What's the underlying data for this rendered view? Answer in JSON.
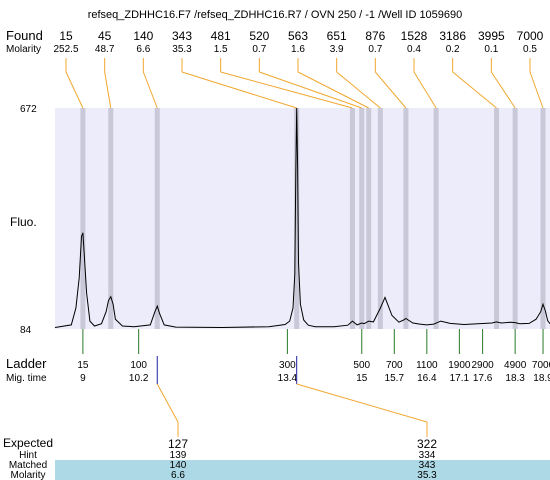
{
  "title": "refseq_ZDHHC16.F7 /refseq_ZDHHC16.R7 / OVN 250 / -1 /Well ID 1059690",
  "colors": {
    "plot_bg": "#ececfa",
    "band": "#c8c8d8",
    "trace": "#000000",
    "found_leader": "#f0a830",
    "ladder_tick": "#2a7a2a",
    "expected_tick": "#2020a0",
    "matched_bg": "#add8e6"
  },
  "labels": {
    "found": "Found",
    "molarity": "Molarity",
    "fluo": "Fluo.",
    "ladder": "Ladder",
    "mig_time": "Mig. time",
    "expected": "Expected",
    "hint": "Hint",
    "matched": "Matched",
    "molarity_bottom": "Molarity"
  },
  "chart_data": {
    "type": "line",
    "title": "refseq_ZDHHC16.F7 /refseq_ZDHHC16.R7 / OVN 250 / -1 /Well ID 1059690",
    "xlabel": "Mig. time",
    "ylabel": "Fluo.",
    "ylim": [
      84,
      672
    ],
    "xlim": [
      8.4,
      19.05
    ],
    "y_ticks": [
      84,
      672
    ],
    "found_peaks": [
      {
        "size": "15",
        "molarity": "252.5",
        "x": 9.0
      },
      {
        "size": "45",
        "molarity": "48.7",
        "x": 9.6
      },
      {
        "size": "140",
        "molarity": "6.6",
        "x": 10.6
      },
      {
        "size": "343",
        "molarity": "35.3",
        "x": 13.6
      },
      {
        "size": "481",
        "molarity": "1.5",
        "x": 14.8
      },
      {
        "size": "520",
        "molarity": "0.7",
        "x": 15.0
      },
      {
        "size": "563",
        "molarity": "1.6",
        "x": 15.15
      },
      {
        "size": "651",
        "molarity": "3.9",
        "x": 15.4
      },
      {
        "size": "876",
        "molarity": "0.7",
        "x": 15.95
      },
      {
        "size": "1528",
        "molarity": "0.4",
        "x": 16.6
      },
      {
        "size": "3186",
        "molarity": "0.2",
        "x": 17.9
      },
      {
        "size": "3995",
        "molarity": "0.1",
        "x": 18.3
      },
      {
        "size": "7000",
        "molarity": "0.5",
        "x": 18.9
      }
    ],
    "ladder": [
      {
        "size": "15",
        "time": "9",
        "x": 9.0
      },
      {
        "size": "100",
        "time": "10.2",
        "x": 10.2
      },
      {
        "size": "300",
        "time": "13.4",
        "x": 13.4
      },
      {
        "size": "500",
        "time": "15",
        "x": 15.0
      },
      {
        "size": "700",
        "time": "15.7",
        "x": 15.7
      },
      {
        "size": "1100",
        "time": "16.4",
        "x": 16.4
      },
      {
        "size": "1900",
        "time": "17.1",
        "x": 17.1
      },
      {
        "size": "2900",
        "time": "17.6",
        "x": 17.6
      },
      {
        "size": "4900",
        "time": "18.3",
        "x": 18.3
      },
      {
        "size": "7000",
        "time": "18.9",
        "x": 18.9
      }
    ],
    "expected": [
      {
        "expected": "127",
        "hint": "139",
        "matched": "140",
        "molarity": "6.6",
        "x": 10.6
      },
      {
        "expected": "322",
        "hint": "334",
        "matched": "343",
        "molarity": "35.3",
        "x": 13.6
      }
    ],
    "series": [
      {
        "x": [
          8.4,
          8.75,
          8.85,
          8.92,
          8.97,
          9.0,
          9.03,
          9.08,
          9.15,
          9.25,
          9.4,
          9.5,
          9.55,
          9.6,
          9.65,
          9.7,
          9.85,
          10.1,
          10.45,
          10.55,
          10.6,
          10.65,
          10.75,
          11.0,
          12.0,
          13.0,
          13.35,
          13.45,
          13.52,
          13.56,
          13.58,
          13.6,
          13.62,
          13.64,
          13.68,
          13.75,
          13.85,
          14.0,
          14.4,
          14.7,
          14.8,
          14.9,
          15.0,
          15.05,
          15.15,
          15.25,
          15.4,
          15.5,
          15.65,
          15.8,
          15.9,
          15.95,
          16.0,
          16.1,
          16.25,
          16.4,
          16.55,
          16.7,
          16.9,
          17.2,
          17.5,
          17.8,
          17.9,
          18.0,
          18.2,
          18.3,
          18.4,
          18.6,
          18.75,
          18.85,
          18.9,
          18.95,
          19.0,
          19.05
        ],
        "y": [
          88,
          95,
          140,
          220,
          330,
          340,
          280,
          180,
          105,
          92,
          98,
          130,
          160,
          170,
          150,
          110,
          92,
          90,
          95,
          130,
          145,
          125,
          95,
          89,
          88,
          90,
          96,
          105,
          140,
          230,
          500,
          672,
          520,
          260,
          150,
          108,
          94,
          90,
          90,
          94,
          105,
          95,
          100,
          98,
          105,
          103,
          140,
          168,
          120,
          102,
          108,
          112,
          108,
          100,
          97,
          95,
          97,
          105,
          99,
          96,
          98,
          100,
          103,
          100,
          102,
          101,
          98,
          99,
          110,
          130,
          150,
          132,
          106,
          98
        ]
      }
    ],
    "grid": false,
    "legend": "none"
  }
}
